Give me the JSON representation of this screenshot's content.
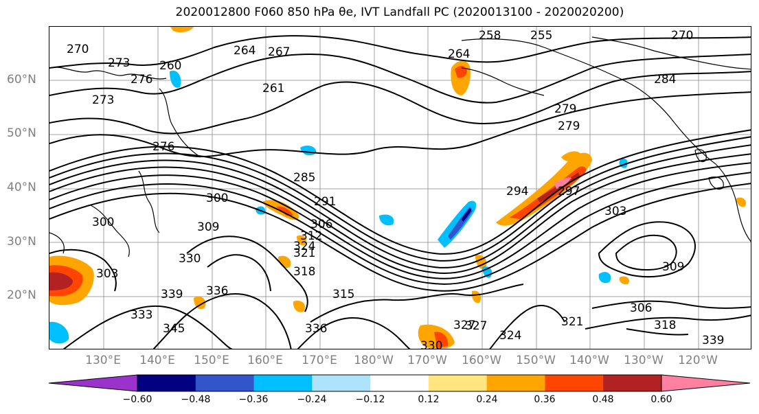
{
  "title": "2020012800 F060 850 hPa θe, IVT Landfall PC (2020013100 - 2020020200)",
  "map": {
    "lat_labels": [
      "60°N",
      "50°N",
      "40°N",
      "30°N",
      "20°N"
    ],
    "lon_labels": [
      "130°E",
      "140°E",
      "150°E",
      "160°E",
      "170°E",
      "180°W",
      "170°W",
      "160°W",
      "150°W",
      "140°W",
      "130°W",
      "120°W"
    ],
    "contour_labels": [
      "270",
      "273",
      "276",
      "273",
      "264",
      "267",
      "261",
      "258",
      "255",
      "270",
      "279",
      "264",
      "260",
      "276",
      "279",
      "284",
      "285",
      "291",
      "294",
      "297",
      "300",
      "300",
      "306",
      "309",
      "312",
      "315",
      "318",
      "321",
      "324",
      "327",
      "330",
      "333",
      "336",
      "339",
      "345",
      "303",
      "309",
      "306",
      "318",
      "321",
      "324",
      "327",
      "336",
      "330",
      "339"
    ],
    "grid": true
  },
  "colorbar": {
    "colors": [
      "#9933cc",
      "#000080",
      "#3355cc",
      "#00bfff",
      "#aee4fb",
      "#ffffff",
      "#ffe680",
      "#ffa500",
      "#ff4500",
      "#b22222",
      "#ff80a0"
    ],
    "ticks": [
      "−0.60",
      "−0.48",
      "−0.36",
      "−0.24",
      "−0.12",
      "0.12",
      "0.24",
      "0.36",
      "0.48",
      "0.60"
    ]
  }
}
